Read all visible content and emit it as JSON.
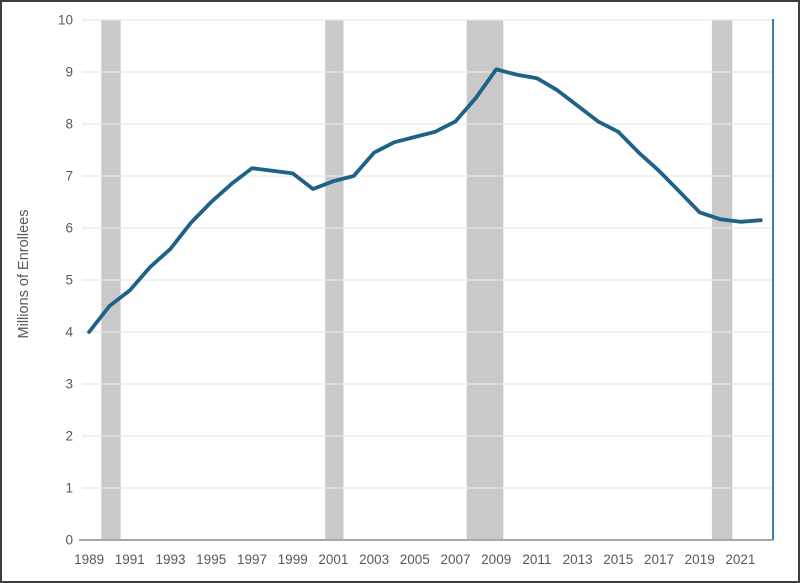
{
  "chart_data": {
    "type": "line",
    "title": "",
    "xlabel": "",
    "ylabel": "Millions of Enrollees",
    "series_name": "Millions of Enrollees",
    "x": [
      1989,
      1990,
      1991,
      1992,
      1993,
      1994,
      1995,
      1996,
      1997,
      1998,
      1999,
      2000,
      2001,
      2002,
      2003,
      2004,
      2005,
      2006,
      2007,
      2008,
      2009,
      2010,
      2011,
      2012,
      2013,
      2014,
      2015,
      2016,
      2017,
      2018,
      2019,
      2020,
      2021,
      2022
    ],
    "values": [
      4.0,
      4.5,
      4.8,
      5.25,
      5.6,
      6.1,
      6.5,
      6.85,
      7.15,
      7.1,
      7.05,
      6.75,
      6.9,
      7.0,
      7.45,
      7.65,
      7.75,
      7.85,
      8.05,
      8.5,
      9.05,
      8.95,
      8.88,
      8.65,
      8.35,
      8.05,
      7.85,
      7.45,
      7.1,
      6.7,
      6.3,
      6.17,
      6.12,
      6.15
    ],
    "x_tick_labels": [
      "1989",
      "1991",
      "1993",
      "1995",
      "1997",
      "1999",
      "2001",
      "2003",
      "2005",
      "2007",
      "2009",
      "2011",
      "2013",
      "2015",
      "2017",
      "2019",
      "2021"
    ],
    "x_tick_years": [
      1989,
      1991,
      1993,
      1995,
      1997,
      1999,
      2001,
      2003,
      2005,
      2007,
      2009,
      2011,
      2013,
      2015,
      2017,
      2019,
      2021
    ],
    "y_tick_labels": [
      "0",
      "1",
      "2",
      "3",
      "4",
      "5",
      "6",
      "7",
      "8",
      "9",
      "10"
    ],
    "y_ticks": [
      0,
      1,
      2,
      3,
      4,
      5,
      6,
      7,
      8,
      9,
      10
    ],
    "xlim": [
      1988.65,
      2022.6
    ],
    "ylim": [
      0,
      10
    ],
    "grid": "horizontal",
    "legend": "none",
    "shaded_bands": [
      {
        "name": "recession-band-1990",
        "from": 1989.6,
        "to": 1990.55
      },
      {
        "name": "recession-band-2001",
        "from": 2000.6,
        "to": 2001.5
      },
      {
        "name": "recession-band-2008-09",
        "from": 2007.55,
        "to": 2009.35
      },
      {
        "name": "recession-band-2020",
        "from": 2019.6,
        "to": 2020.6
      }
    ]
  },
  "colors": {
    "line": "#1f6287",
    "band": "#c9c9c9",
    "gridline": "#e7e7e7",
    "axis_line": "#a8a8a8",
    "right_border": "#3b7fae",
    "tick_text": "#595959",
    "axis_title_text": "#595959",
    "figure_border": "#3d3d3d",
    "background": "#ffffff"
  }
}
